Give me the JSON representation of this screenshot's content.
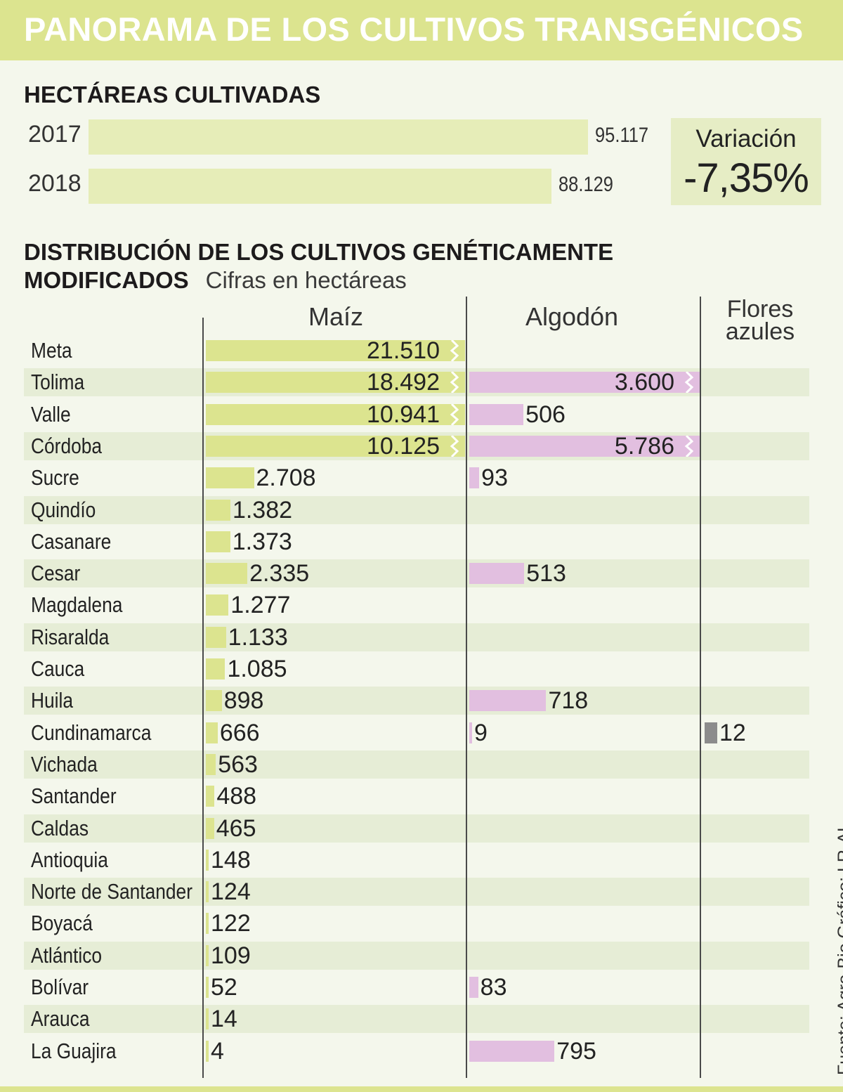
{
  "header": {
    "title": "PANORAMA DE LOS CULTIVOS TRANSGÉNICOS"
  },
  "hectareas": {
    "title": "HECTÁREAS CULTIVADAS",
    "rows": [
      {
        "year": "2017",
        "value": 95117,
        "label": "95.117"
      },
      {
        "year": "2018",
        "value": 88129,
        "label": "88.129"
      }
    ],
    "variacion_label": "Variación",
    "variacion_value": "-7,35%"
  },
  "distribucion": {
    "title_line1": "DISTRIBUCIÓN DE LOS CULTIVOS GENÉTICAMENTE",
    "title_line2": "MODIFICADOS",
    "unit_note": "Cifras en hectáreas"
  },
  "source": "Fuente: Agro-Bio    Gráfico: LR-AL",
  "colors": {
    "maiz": "#dce48f",
    "algodon": "#e2bfe0",
    "flores": "#8c8c8c",
    "band": "#e6edd6"
  },
  "chart_data": {
    "type": "bar",
    "orientation": "horizontal",
    "columns": [
      "Maíz",
      "Algodón",
      "Flores azules"
    ],
    "categories": [
      "Meta",
      "Tolima",
      "Valle",
      "Córdoba",
      "Sucre",
      "Quindío",
      "Casanare",
      "Cesar",
      "Magdalena",
      "Risaralda",
      "Cauca",
      "Huila",
      "Cundinamarca",
      "Vichada",
      "Santander",
      "Caldas",
      "Antioquia",
      "Norte de Santander",
      "Boyacá",
      "Atlántico",
      "Bolívar",
      "Arauca",
      "La Guajira"
    ],
    "series": [
      {
        "name": "Maíz",
        "values": [
          21510,
          18492,
          10941,
          10125,
          2708,
          1382,
          1373,
          2335,
          1277,
          1133,
          1085,
          898,
          666,
          563,
          488,
          465,
          148,
          124,
          122,
          109,
          52,
          14,
          4
        ],
        "labels": [
          "21.510",
          "18.492",
          "10.941",
          "10.125",
          "2.708",
          "1.382",
          "1.373",
          "2.335",
          "1.277",
          "1.133",
          "1.085",
          "898",
          "666",
          "563",
          "488",
          "465",
          "148",
          "124",
          "122",
          "109",
          "52",
          "14",
          "4"
        ]
      },
      {
        "name": "Algodón",
        "values": [
          null,
          3600,
          506,
          5786,
          93,
          null,
          null,
          513,
          null,
          null,
          null,
          718,
          9,
          null,
          null,
          null,
          null,
          null,
          null,
          null,
          83,
          null,
          795
        ],
        "labels": [
          null,
          "3.600",
          "506",
          "5.786",
          "93",
          null,
          null,
          "513",
          null,
          null,
          null,
          "718",
          "9",
          null,
          null,
          null,
          null,
          null,
          null,
          null,
          "83",
          null,
          "795"
        ]
      },
      {
        "name": "Flores azules",
        "values": [
          null,
          null,
          null,
          null,
          null,
          null,
          null,
          null,
          null,
          null,
          null,
          null,
          12,
          null,
          null,
          null,
          null,
          null,
          null,
          null,
          null,
          null,
          null
        ],
        "labels": [
          null,
          null,
          null,
          null,
          null,
          null,
          null,
          null,
          null,
          null,
          null,
          null,
          "12",
          null,
          null,
          null,
          null,
          null,
          null,
          null,
          null,
          null,
          null
        ]
      }
    ],
    "broken_bars": {
      "Maíz": [
        "Meta",
        "Tolima",
        "Valle",
        "Córdoba"
      ],
      "Algodón": [
        "Tolima",
        "Córdoba"
      ]
    }
  }
}
